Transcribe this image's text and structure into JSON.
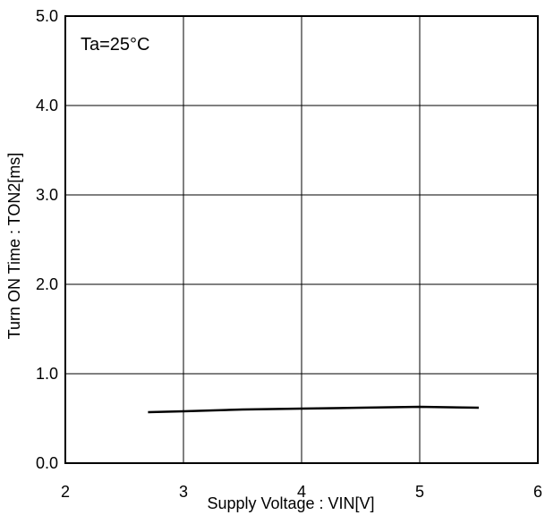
{
  "chart_data": {
    "type": "line",
    "title": "",
    "xlabel": "Supply Voltage : VIN[V]",
    "ylabel": "Turn ON Time : TON2[ms]",
    "annotation": "Ta=25°C",
    "xlim": [
      2,
      6
    ],
    "ylim": [
      0,
      5
    ],
    "x_ticks": [
      "2",
      "3",
      "4",
      "5",
      "6"
    ],
    "y_ticks": [
      "0.0",
      "1.0",
      "2.0",
      "3.0",
      "4.0",
      "5.0"
    ],
    "grid": true,
    "series": [
      {
        "x": [
          2.7,
          3.0,
          3.5,
          4.0,
          4.5,
          5.0,
          5.5
        ],
        "y": [
          0.57,
          0.58,
          0.6,
          0.61,
          0.62,
          0.63,
          0.62
        ]
      }
    ]
  }
}
